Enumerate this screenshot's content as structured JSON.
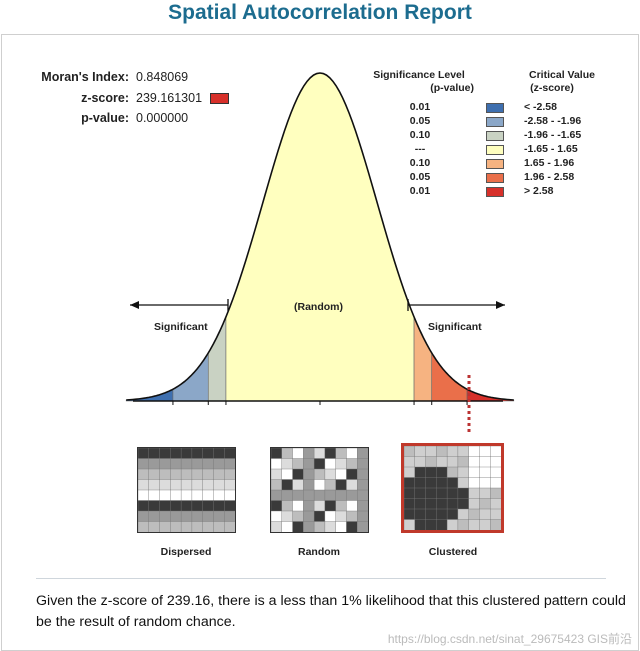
{
  "report": {
    "title": "Spatial Autocorrelation Report"
  },
  "stats": {
    "morans_index_label": "Moran's Index:",
    "morans_index_value": "0.848069",
    "zscore_label": "z-score:",
    "zscore_value": "239.161301",
    "pvalue_label": "p-value:",
    "pvalue_value": "0.000000",
    "zscore_swatch_color": "#d7302a"
  },
  "legend": {
    "significance_header_line1": "Significance Level",
    "significance_header_line2": "(p-value)",
    "critical_header_line1": "Critical Value",
    "critical_header_line2": "(z-score)",
    "rows": [
      {
        "p": "0.01",
        "range": "< -2.58",
        "color": "#3e6faf"
      },
      {
        "p": "0.05",
        "range": "-2.58 - -1.96",
        "color": "#8ba7c8"
      },
      {
        "p": "0.10",
        "range": "-1.96 - -1.65",
        "color": "#c9d2c3"
      },
      {
        "p": "---",
        "range": "-1.65 - 1.65",
        "color": "#ffffbf"
      },
      {
        "p": "0.10",
        "range": "1.65 - 1.96",
        "color": "#f6b381"
      },
      {
        "p": "0.05",
        "range": "1.96 - 2.58",
        "color": "#ea6f4a"
      },
      {
        "p": "0.01",
        "range": "> 2.58",
        "color": "#d7302a"
      }
    ]
  },
  "curve": {
    "left_label": "Significant",
    "center_label": "(Random)",
    "right_label": "Significant"
  },
  "patterns": [
    {
      "caption": "Dispersed",
      "selected": false
    },
    {
      "caption": "Random",
      "selected": false
    },
    {
      "caption": "Clustered",
      "selected": true
    }
  ],
  "conclusion": "Given the z-score of 239.16, there is a less than 1% likelihood that this clustered pattern could be the result of random chance.",
  "watermark": "https://blog.csdn.net/sinat_29675423  GIS前沿"
}
